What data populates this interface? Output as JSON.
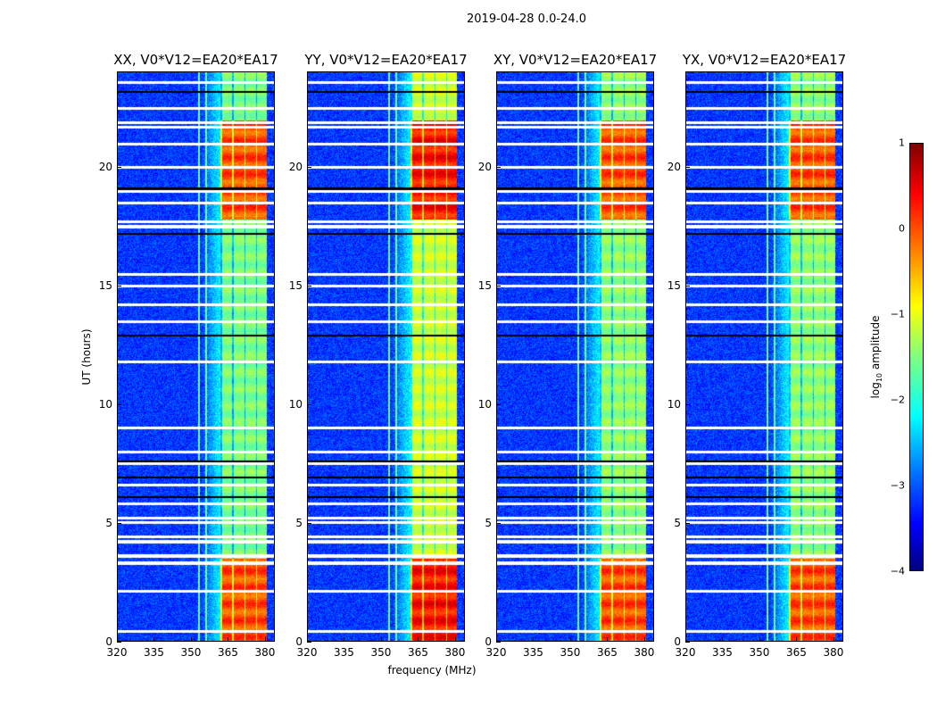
{
  "chart_data": {
    "type": "heatmap",
    "title": "2019-04-28 0.0-24.0",
    "xlabel": "frequency (MHz)",
    "ylabel": "UT (hours)",
    "xlim": [
      320,
      384
    ],
    "ylim": [
      0,
      24
    ],
    "xticks": [
      "320",
      "335",
      "350",
      "365",
      "380"
    ],
    "yticks": [
      "0",
      "5",
      "10",
      "15",
      "20"
    ],
    "panels": [
      {
        "title": "XX, V0*V12=EA20*EA17",
        "band_level": -1.5,
        "peak_level": 0.0
      },
      {
        "title": "YY, V0*V12=EA20*EA17",
        "band_level": -1.1,
        "peak_level": 0.3
      },
      {
        "title": "XY, V0*V12=EA20*EA17",
        "band_level": -1.4,
        "peak_level": 0.0
      },
      {
        "title": "YX, V0*V12=EA20*EA17",
        "band_level": -1.4,
        "peak_level": 0.0
      }
    ],
    "background_level": -3.1,
    "signal_band_mhz": [
      362,
      381
    ],
    "bright_periods_hours": [
      [
        0,
        3.5
      ],
      [
        17.8,
        22
      ]
    ],
    "flagged_rows_hours": [
      0.4,
      2.1,
      3.3,
      3.6,
      4.2,
      4.4,
      5.0,
      5.2,
      5.8,
      6.6,
      7.5,
      8.0,
      9.0,
      11.8,
      13.5,
      14.2,
      15.0,
      15.5,
      17.5,
      17.7,
      18.5,
      19.0,
      20.0,
      21.0,
      21.7,
      21.9,
      22.5,
      23.6
    ],
    "dead_rows_hours": [
      6.1,
      6.9,
      7.6,
      12.9,
      17.2,
      19.1,
      23.2
    ],
    "colorbar": {
      "label": "log10 amplitude",
      "label_main": "log",
      "label_sub": "10",
      "label_rest": " amplitude",
      "range": [
        -4,
        1
      ],
      "ticks": [
        "1",
        "0",
        "−1",
        "−2",
        "−3",
        "−4"
      ],
      "colormap": "jet"
    }
  }
}
